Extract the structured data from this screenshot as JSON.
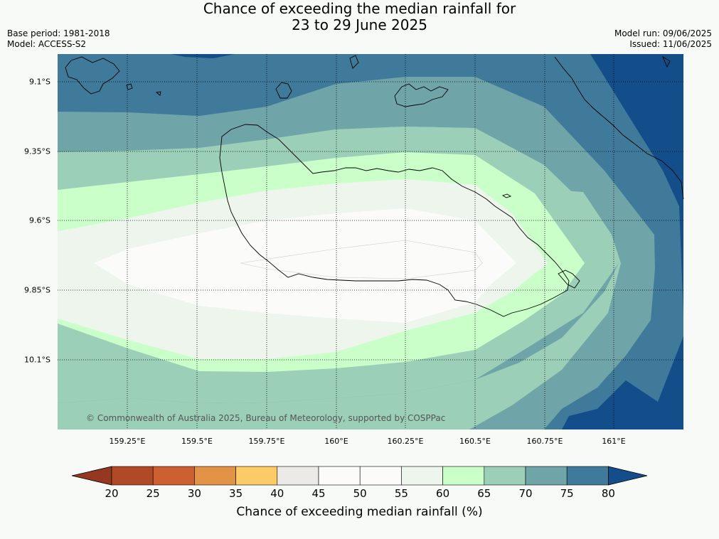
{
  "title_line1": "Chance of exceeding the median rainfall for",
  "title_line2": "23 to 29 June 2025",
  "base_period": "Base period: 1981-2018",
  "model": "Model: ACCESS-S2",
  "model_run": "Model run: 09/06/2025",
  "issued": "Issued: 11/06/2025",
  "copyright": "© Commonwealth of Australia 2025, Bureau of Meteorology, supported by COSPPac",
  "lat_labels": [
    "9.1°S",
    "9.35°S",
    "9.6°S",
    "9.85°S",
    "10.1°S"
  ],
  "lon_labels": [
    "159.25°E",
    "159.5°E",
    "159.75°E",
    "160°E",
    "160.25°E",
    "160.5°E",
    "160.75°E",
    "161°E"
  ],
  "colorbar": {
    "title": "Chance of exceeding median rainfall (%)",
    "ticks": [
      "20",
      "25",
      "30",
      "35",
      "40",
      "45",
      "50",
      "55",
      "60",
      "65",
      "70",
      "75",
      "80"
    ],
    "colors": [
      "#943822",
      "#b04a26",
      "#cc6030",
      "#e29346",
      "#fccb67",
      "#ebeae6",
      "#fbfbf9",
      "#fbfcf9",
      "#edf5ec",
      "#caffca",
      "#9ccfb7",
      "#6fa4a8",
      "#3f7a9b",
      "#134e8a"
    ]
  },
  "map": {
    "region": "Guadalcanal, Solomon Islands",
    "lat_range": [
      9.0,
      10.35
    ],
    "lon_range": [
      159.0,
      161.25
    ]
  }
}
